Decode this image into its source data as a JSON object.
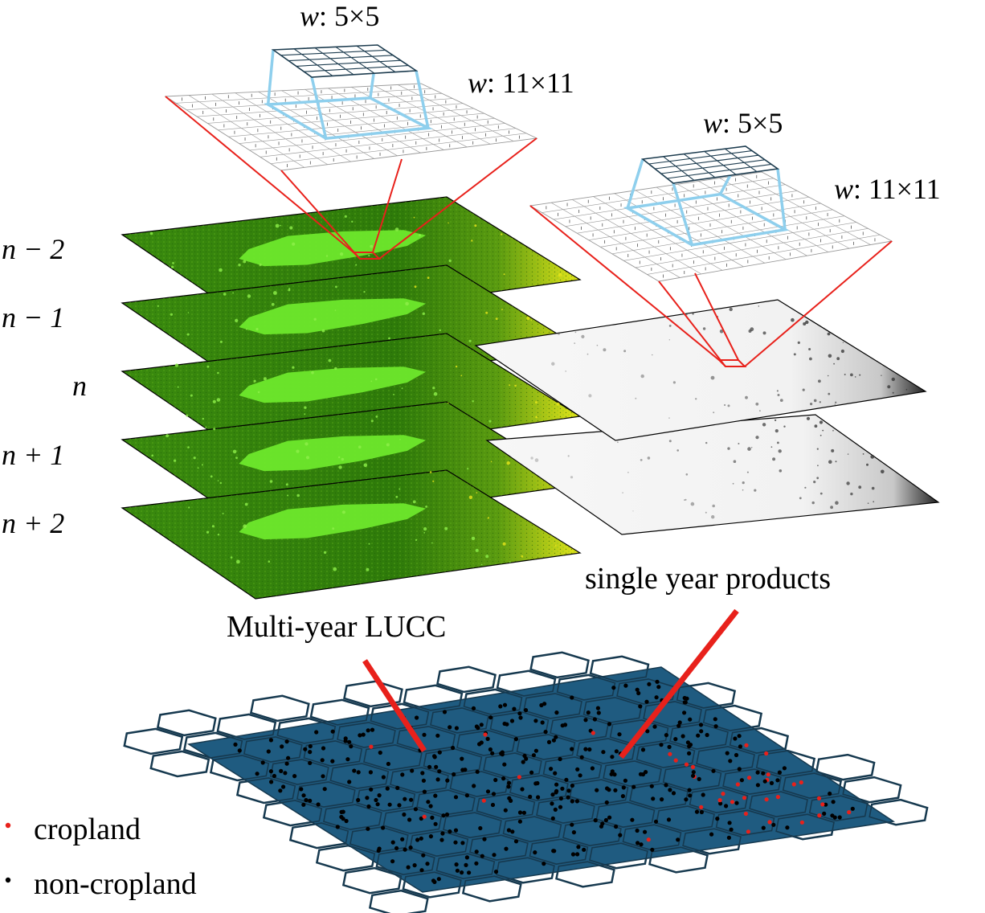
{
  "diagram": {
    "window_labels": {
      "left_small_prefix": "w",
      "left_small_size": ": 5×5",
      "left_large_prefix": "w",
      "left_large_size": ": 11×11",
      "right_small_prefix": "w",
      "right_small_size": ": 5×5",
      "right_large_prefix": "w",
      "right_large_size": ": 11×11"
    },
    "year_labels": [
      "n − 2",
      "n − 1",
      "n",
      "n + 1",
      "n + 2"
    ],
    "captions": {
      "multi_year": "Multi-year LUCC",
      "single_year": "single year products"
    },
    "legend": {
      "cropland": "cropland",
      "non_cropland": "non-cropland"
    },
    "colors": {
      "forest": "#2e7d0b",
      "bright_green": "#6ee82c",
      "yellow": "#e8e81c",
      "frame_red": "#e8211b",
      "window_blue": "#8ecfed",
      "hex_fill": "#1f5b80",
      "hex_edge": "#16394f",
      "cropland_dot": "#e8211b",
      "noncropland_dot": "#000000"
    }
  }
}
